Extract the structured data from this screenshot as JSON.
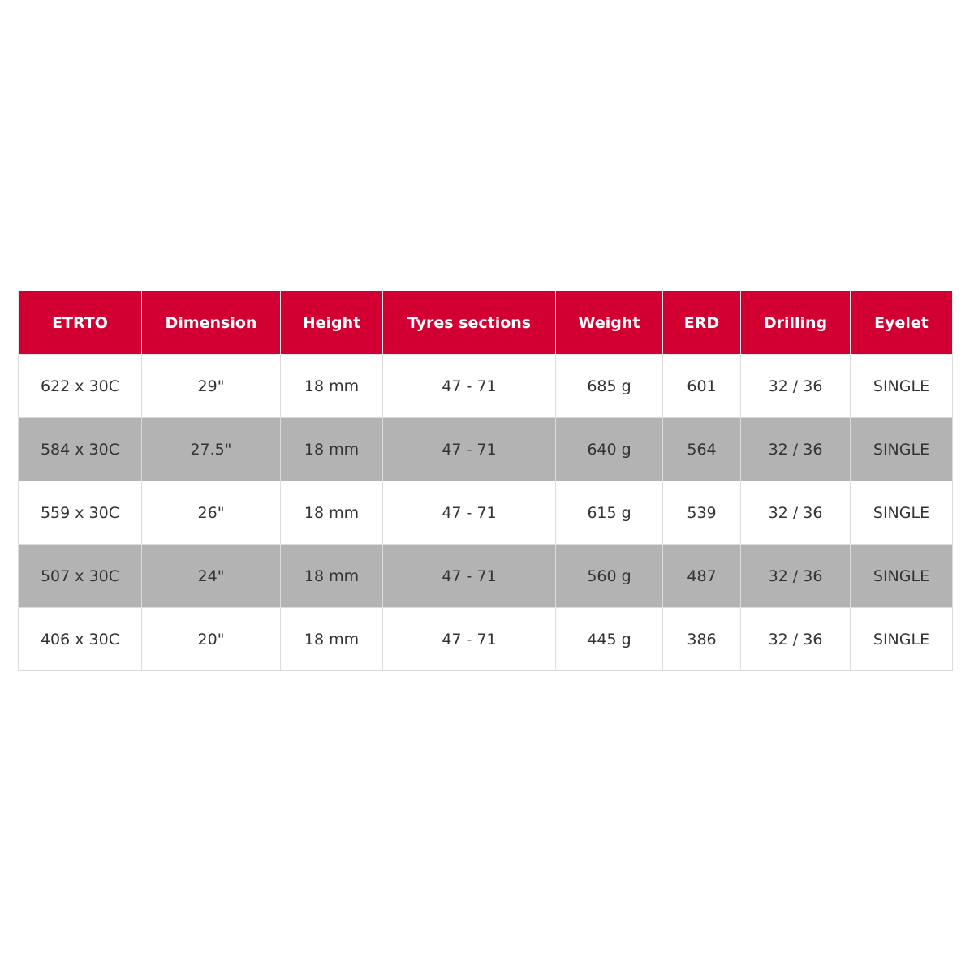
{
  "table": {
    "headers": [
      "ETRTO",
      "Dimension",
      "Height",
      "Tyres sections",
      "Weight",
      "ERD",
      "Drilling",
      "Eyelet"
    ],
    "rows": [
      [
        "622 x 30C",
        "29\"",
        "18 mm",
        "47 - 71",
        "685 g",
        "601",
        "32 / 36",
        "SINGLE"
      ],
      [
        "584 x 30C",
        "27.5\"",
        "18 mm",
        "47 - 71",
        "640 g",
        "564",
        "32 / 36",
        "SINGLE"
      ],
      [
        "559 x 30C",
        "26\"",
        "18 mm",
        "47 - 71",
        "615 g",
        "539",
        "32 / 36",
        "SINGLE"
      ],
      [
        "507 x 30C",
        "24\"",
        "18 mm",
        "47 - 71",
        "560 g",
        "487",
        "32 / 36",
        "SINGLE"
      ],
      [
        "406 x 30C",
        "20\"",
        "18 mm",
        "47 - 71",
        "445 g",
        "386",
        "32 / 36",
        "SINGLE"
      ]
    ]
  },
  "colors": {
    "header_bg": "#d20032",
    "alt_row_bg": "#b3b3b3",
    "text": "#333333"
  }
}
